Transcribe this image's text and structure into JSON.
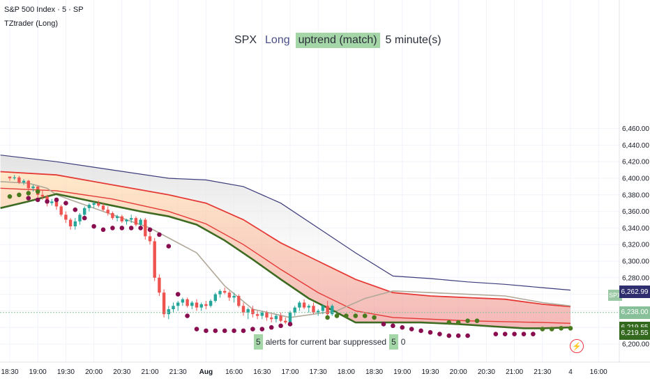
{
  "header": {
    "symbol_line": "S&P 500 Index · 5 · SP",
    "indicator": "TZtrader (Long)"
  },
  "banner": {
    "symbol": "SPX",
    "direction": "Long",
    "trend": "uptrend (match)",
    "timeframe": "5 minute(s)"
  },
  "alert": {
    "count": "5",
    "text": "alerts for current bar suppressed",
    "count2": "5",
    "zero": "0"
  },
  "price_labels": [
    {
      "text": "6,262.99",
      "price": 6262.99,
      "color": "#2e2e6e"
    },
    {
      "text": "6,238.00",
      "price": 6238.0,
      "color": "#88c09a"
    },
    {
      "text": "6,219.55",
      "price": 6219.55,
      "color": "#33691e"
    },
    {
      "text": "6,219.55",
      "price": 6213.0,
      "color": "#33691e"
    }
  ],
  "spx_tag": "SPX",
  "colors": {
    "upper_band": "#3b3a7a",
    "red_band": "#e53935",
    "green_line": "#3d6b21",
    "gray_band": "#b0a898",
    "candle_up": "#26a69a",
    "candle_down": "#ef5350",
    "dot_down": "#880e4f",
    "dot_up": "#4a7a1e"
  },
  "chart_data": {
    "type": "candlestick",
    "title": "S&P 500 Index · 5 · SP",
    "ylim": [
      6195,
      6465
    ],
    "y_ticks": [
      "6,200.00",
      "6,220.00",
      "6,240.00",
      "6,260.00",
      "6,280.00",
      "6,300.00",
      "6,320.00",
      "6,340.00",
      "6,360.00",
      "6,380.00",
      "6,400.00",
      "6,420.00",
      "6,440.00",
      "6,460.00"
    ],
    "y_tick_values": [
      6200,
      6220,
      6240,
      6260,
      6280,
      6300,
      6320,
      6340,
      6360,
      6380,
      6400,
      6420,
      6440,
      6460
    ],
    "x_ticks": [
      "18:30",
      "19:00",
      "19:30",
      "20:00",
      "20:30",
      "21:00",
      "21:30",
      "Aug",
      "16:00",
      "16:30",
      "17:00",
      "17:30",
      "18:00",
      "18:30",
      "19:00",
      "19:30",
      "20:00",
      "20:30",
      "21:00",
      "21:30",
      "4",
      "16:00"
    ],
    "x_tick_index": [
      0,
      6,
      12,
      18,
      24,
      30,
      36,
      42,
      48,
      54,
      60,
      66,
      72,
      78,
      84,
      90,
      96,
      102,
      108,
      114,
      120,
      126
    ],
    "x_tick_bold": [
      false,
      false,
      false,
      false,
      false,
      false,
      false,
      true,
      false,
      false,
      false,
      false,
      false,
      false,
      false,
      false,
      false,
      false,
      false,
      false,
      false,
      false
    ],
    "last_price": 6238.0,
    "series": [
      {
        "name": "upper_band",
        "points": [
          [
            -2,
            6428
          ],
          [
            10,
            6420
          ],
          [
            22,
            6410
          ],
          [
            34,
            6400
          ],
          [
            42,
            6398
          ],
          [
            50,
            6390
          ],
          [
            58,
            6370
          ],
          [
            66,
            6340
          ],
          [
            74,
            6310
          ],
          [
            82,
            6282
          ],
          [
            90,
            6279
          ],
          [
            98,
            6275
          ],
          [
            106,
            6272
          ],
          [
            114,
            6268
          ],
          [
            120,
            6265
          ]
        ]
      },
      {
        "name": "red_band_upper",
        "points": [
          [
            -2,
            6408
          ],
          [
            10,
            6404
          ],
          [
            22,
            6392
          ],
          [
            34,
            6380
          ],
          [
            42,
            6370
          ],
          [
            50,
            6350
          ],
          [
            58,
            6322
          ],
          [
            66,
            6300
          ],
          [
            74,
            6278
          ],
          [
            82,
            6262
          ],
          [
            90,
            6258
          ],
          [
            98,
            6256
          ],
          [
            106,
            6254
          ],
          [
            114,
            6248
          ],
          [
            120,
            6245
          ]
        ]
      },
      {
        "name": "red_band_lower",
        "points": [
          [
            -2,
            6388
          ],
          [
            10,
            6385
          ],
          [
            22,
            6375
          ],
          [
            34,
            6360
          ],
          [
            42,
            6345
          ],
          [
            50,
            6320
          ],
          [
            58,
            6290
          ],
          [
            66,
            6262
          ],
          [
            74,
            6240
          ],
          [
            82,
            6232
          ],
          [
            90,
            6230
          ],
          [
            98,
            6228
          ],
          [
            106,
            6227
          ],
          [
            114,
            6226
          ],
          [
            120,
            6225
          ]
        ]
      },
      {
        "name": "gray_band",
        "points": [
          [
            -2,
            6396
          ],
          [
            4,
            6394
          ],
          [
            8,
            6388
          ],
          [
            10,
            6380
          ],
          [
            20,
            6360
          ],
          [
            30,
            6340
          ],
          [
            40,
            6310
          ],
          [
            46,
            6270
          ],
          [
            52,
            6242
          ],
          [
            60,
            6232
          ],
          [
            70,
            6240
          ],
          [
            76,
            6255
          ],
          [
            82,
            6264
          ],
          [
            90,
            6262
          ],
          [
            98,
            6260
          ],
          [
            106,
            6258
          ],
          [
            114,
            6250
          ],
          [
            120,
            6246
          ]
        ]
      },
      {
        "name": "green_line",
        "points": [
          [
            -2,
            6364
          ],
          [
            4,
            6372
          ],
          [
            10,
            6381
          ],
          [
            16,
            6374
          ],
          [
            22,
            6367
          ],
          [
            28,
            6360
          ],
          [
            34,
            6354
          ],
          [
            40,
            6344
          ],
          [
            46,
            6325
          ],
          [
            52,
            6302
          ],
          [
            58,
            6278
          ],
          [
            64,
            6255
          ],
          [
            70,
            6238
          ],
          [
            74,
            6226
          ],
          [
            80,
            6226
          ],
          [
            88,
            6226
          ],
          [
            96,
            6224
          ],
          [
            104,
            6221
          ],
          [
            110,
            6219
          ],
          [
            114,
            6219
          ],
          [
            120,
            6220
          ]
        ]
      }
    ],
    "candles": [
      [
        6402,
        6402,
        6397,
        6400
      ],
      [
        6400,
        6404,
        6398,
        6401
      ],
      [
        6401,
        6403,
        6393,
        6395
      ],
      [
        6395,
        6399,
        6392,
        6397
      ],
      [
        6397,
        6398,
        6385,
        6388
      ],
      [
        6388,
        6392,
        6384,
        6390
      ],
      [
        6390,
        6391,
        6377,
        6380
      ],
      [
        6380,
        6385,
        6374,
        6378
      ],
      [
        6378,
        6380,
        6366,
        6370
      ],
      [
        6370,
        6375,
        6367,
        6372
      ],
      [
        6372,
        6374,
        6362,
        6366
      ],
      [
        6366,
        6368,
        6354,
        6356
      ],
      [
        6356,
        6360,
        6346,
        6350
      ],
      [
        6350,
        6352,
        6338,
        6342
      ],
      [
        6342,
        6352,
        6338,
        6348
      ],
      [
        6348,
        6358,
        6344,
        6356
      ],
      [
        6356,
        6366,
        6352,
        6364
      ],
      [
        6364,
        6370,
        6360,
        6368
      ],
      [
        6368,
        6372,
        6364,
        6370
      ],
      [
        6370,
        6373,
        6365,
        6367
      ],
      [
        6367,
        6370,
        6360,
        6362
      ],
      [
        6362,
        6366,
        6355,
        6358
      ],
      [
        6358,
        6360,
        6350,
        6352
      ],
      [
        6352,
        6356,
        6348,
        6354
      ],
      [
        6354,
        6356,
        6346,
        6348
      ],
      [
        6348,
        6351,
        6344,
        6350
      ],
      [
        6350,
        6356,
        6346,
        6352
      ],
      [
        6352,
        6354,
        6342,
        6344
      ],
      [
        6344,
        6352,
        6342,
        6350
      ],
      [
        6350,
        6352,
        6326,
        6330
      ],
      [
        6330,
        6336,
        6320,
        6324
      ],
      [
        6324,
        6328,
        6276,
        6280
      ],
      [
        6280,
        6284,
        6258,
        6262
      ],
      [
        6262,
        6266,
        6232,
        6236
      ],
      [
        6236,
        6246,
        6230,
        6242
      ],
      [
        6242,
        6250,
        6238,
        6246
      ],
      [
        6246,
        6252,
        6240,
        6250
      ],
      [
        6250,
        6256,
        6246,
        6254
      ],
      [
        6254,
        6256,
        6244,
        6246
      ],
      [
        6246,
        6252,
        6242,
        6250
      ],
      [
        6250,
        6254,
        6240,
        6244
      ],
      [
        6244,
        6250,
        6240,
        6248
      ],
      [
        6248,
        6252,
        6242,
        6246
      ],
      [
        6246,
        6254,
        6244,
        6252
      ],
      [
        6252,
        6262,
        6250,
        6260
      ],
      [
        6260,
        6266,
        6256,
        6264
      ],
      [
        6264,
        6268,
        6260,
        6262
      ],
      [
        6262,
        6264,
        6252,
        6256
      ],
      [
        6256,
        6262,
        6250,
        6258
      ],
      [
        6258,
        6260,
        6244,
        6246
      ],
      [
        6246,
        6250,
        6234,
        6238
      ],
      [
        6238,
        6244,
        6230,
        6242
      ],
      [
        6242,
        6246,
        6232,
        6236
      ],
      [
        6236,
        6240,
        6230,
        6234
      ],
      [
        6234,
        6240,
        6230,
        6238
      ],
      [
        6238,
        6240,
        6228,
        6232
      ],
      [
        6232,
        6236,
        6226,
        6230
      ],
      [
        6230,
        6236,
        6226,
        6234
      ],
      [
        6234,
        6238,
        6226,
        6228
      ],
      [
        6228,
        6232,
        6224,
        6226
      ],
      [
        6226,
        6240,
        6224,
        6238
      ],
      [
        6238,
        6246,
        6234,
        6244
      ],
      [
        6244,
        6252,
        6240,
        6250
      ],
      [
        6250,
        6254,
        6242,
        6244
      ],
      [
        6244,
        6248,
        6238,
        6246
      ],
      [
        6246,
        6250,
        6236,
        6238
      ],
      [
        6238,
        6242,
        6234,
        6240
      ],
      [
        6240,
        6248,
        6236,
        6246
      ],
      [
        6246,
        6252,
        6232,
        6236
      ],
      [
        6236,
        6248,
        6234,
        6246
      ]
    ],
    "dots_down": [
      [
        4,
        6376
      ],
      [
        6,
        6374
      ],
      [
        8,
        6372
      ],
      [
        10,
        6374
      ],
      [
        12,
        6370
      ],
      [
        14,
        6362
      ],
      [
        16,
        6352
      ],
      [
        18,
        6342
      ],
      [
        20,
        6338
      ],
      [
        22,
        6340
      ],
      [
        24,
        6340
      ],
      [
        26,
        6340
      ],
      [
        28,
        6340
      ],
      [
        30,
        6338
      ],
      [
        32,
        6332
      ],
      [
        34,
        6318
      ],
      [
        36,
        6260
      ],
      [
        38,
        6234
      ],
      [
        40,
        6218
      ],
      [
        42,
        6216
      ],
      [
        44,
        6216
      ],
      [
        46,
        6216
      ],
      [
        48,
        6216
      ],
      [
        50,
        6216
      ],
      [
        52,
        6218
      ],
      [
        54,
        6218
      ],
      [
        56,
        6220
      ],
      [
        58,
        6222
      ],
      [
        60,
        6224
      ],
      [
        80,
        6224
      ],
      [
        82,
        6222
      ],
      [
        84,
        6220
      ],
      [
        86,
        6218
      ],
      [
        88,
        6216
      ],
      [
        90,
        6214
      ],
      [
        92,
        6212
      ],
      [
        94,
        6210
      ],
      [
        96,
        6210
      ],
      [
        98,
        6210
      ],
      [
        104,
        6212
      ],
      [
        106,
        6212
      ],
      [
        108,
        6212
      ],
      [
        110,
        6212
      ],
      [
        112,
        6212
      ]
    ],
    "dots_up": [
      [
        0,
        6378
      ],
      [
        2,
        6380
      ],
      [
        4,
        6382
      ],
      [
        6,
        6384
      ],
      [
        68,
        6232
      ],
      [
        70,
        6234
      ],
      [
        72,
        6234
      ],
      [
        74,
        6234
      ],
      [
        76,
        6234
      ],
      [
        78,
        6232
      ],
      [
        94,
        6226
      ],
      [
        96,
        6226
      ],
      [
        98,
        6228
      ],
      [
        100,
        6228
      ],
      [
        114,
        6218
      ],
      [
        116,
        6218
      ],
      [
        118,
        6219
      ],
      [
        120,
        6219
      ]
    ]
  }
}
